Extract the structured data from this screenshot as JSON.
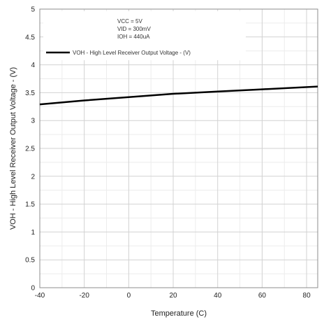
{
  "chart_data": {
    "type": "line",
    "title": "",
    "xlabel": "Temperature (C)",
    "ylabel": "VOH - High Level Receiver Output Voltage - (V)",
    "xlim": [
      -40,
      85
    ],
    "ylim": [
      0,
      5
    ],
    "xticks": [
      -40,
      -20,
      0,
      20,
      40,
      60,
      80
    ],
    "xtick_labels": [
      "-40",
      "-20",
      "0",
      "20",
      "40",
      "60",
      "80"
    ],
    "yticks": [
      0,
      0.5,
      1,
      1.5,
      2,
      2.5,
      3,
      3.5,
      4,
      4.5,
      5
    ],
    "ytick_labels": [
      "0",
      "0.5",
      "1",
      "1.5",
      "2",
      "2.5",
      "3",
      "3.5",
      "4",
      "4.5",
      "5"
    ],
    "minor_xticks": [
      -30,
      -10,
      10,
      30,
      50,
      70
    ],
    "minor_yticks": [
      0.25,
      0.75,
      1.25,
      1.75,
      2.25,
      2.75,
      3.25,
      3.75,
      4.25,
      4.75
    ],
    "grid": true,
    "legend_position": "top-left",
    "conditions": [
      "VCC = 5V",
      "VID = 300mV",
      "IOH =  440uA"
    ],
    "series": [
      {
        "name": "VOH - High Level Receiver Output Voltage - (V)",
        "color": "#000000",
        "x": [
          -40,
          -20,
          0,
          20,
          40,
          60,
          85
        ],
        "y": [
          3.29,
          3.36,
          3.42,
          3.48,
          3.52,
          3.56,
          3.61
        ]
      }
    ]
  }
}
